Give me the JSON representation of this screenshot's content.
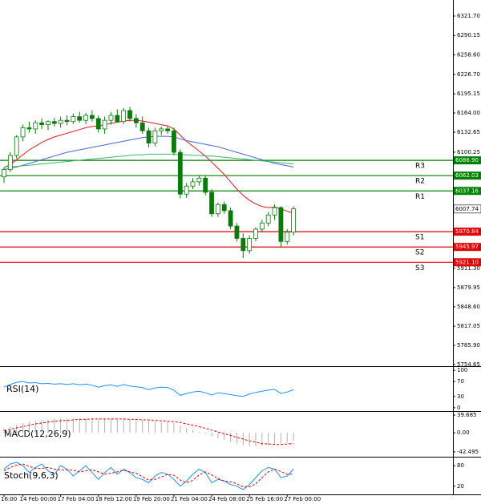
{
  "chart_data": [
    {
      "type": "candlestick",
      "categories": [
        "16:00",
        null,
        null,
        "14 Feb 00:00",
        null,
        null,
        null,
        null,
        null,
        "17 Feb 04:00",
        null,
        null,
        null,
        null,
        null,
        "18 Feb 12:00",
        null,
        null,
        null,
        null,
        null,
        "19 Feb 20:00",
        null,
        null,
        null,
        null,
        null,
        "21 Feb 04:00",
        null,
        null,
        null,
        null,
        null,
        "24 Feb 08:00",
        null,
        null,
        null,
        null,
        null,
        "25 Feb 16:00",
        null,
        null,
        null,
        null,
        null,
        "27 Feb 00:00",
        null
      ],
      "open": [
        6060,
        6072,
        6095,
        6125,
        6140,
        6138,
        6148,
        6145,
        6150,
        6147,
        6152,
        6150,
        6158,
        6152,
        6160,
        6155,
        6138,
        6152,
        6160,
        6150,
        6168,
        6155,
        6148,
        6135,
        6115,
        6135,
        6138,
        6135,
        6100,
        6032,
        6045,
        6052,
        6058,
        6035,
        6000,
        6015,
        6005,
        5980,
        5960,
        5940,
        5960,
        5975,
        5985,
        5998,
        6010,
        5955,
        5970
      ],
      "high": [
        6075,
        6100,
        6128,
        6145,
        6150,
        6152,
        6155,
        6152,
        6156,
        6158,
        6160,
        6163,
        6166,
        6164,
        6168,
        6160,
        6158,
        6165,
        6170,
        6172,
        6174,
        6162,
        6158,
        6140,
        6140,
        6142,
        6142,
        6140,
        6105,
        6050,
        6058,
        6062,
        6062,
        6040,
        6018,
        6020,
        6010,
        5985,
        5968,
        5965,
        5978,
        5990,
        6003,
        6015,
        6012,
        5975,
        6012
      ],
      "low": [
        6050,
        6068,
        6090,
        6118,
        6132,
        6130,
        6138,
        6136,
        6142,
        6140,
        6144,
        6146,
        6148,
        6146,
        6150,
        6132,
        6130,
        6145,
        6148,
        6146,
        6150,
        6140,
        6130,
        6108,
        6110,
        6128,
        6130,
        6095,
        6025,
        6026,
        6040,
        6046,
        6030,
        5995,
        5995,
        6000,
        5975,
        5955,
        5928,
        5935,
        5955,
        5970,
        5980,
        5990,
        5945,
        5950,
        5965
      ],
      "close": [
        6072,
        6095,
        6125,
        6140,
        6138,
        6148,
        6145,
        6150,
        6147,
        6152,
        6150,
        6158,
        6152,
        6160,
        6155,
        6138,
        6152,
        6160,
        6150,
        6168,
        6155,
        6148,
        6135,
        6115,
        6135,
        6138,
        6135,
        6100,
        6032,
        6045,
        6052,
        6058,
        6035,
        6000,
        6015,
        6005,
        5980,
        5960,
        5940,
        5960,
        5975,
        5985,
        5998,
        6010,
        5955,
        5970,
        6008
      ],
      "up_color": "#ffffff",
      "down_color": "#0a7a0a",
      "wick_color": "#0a7a0a",
      "series": [
        {
          "color": "#e8161b",
          "values": [
            6075,
            6080,
            6088,
            6096,
            6104,
            6110,
            6116,
            6121,
            6125,
            6128,
            6131,
            6134,
            6137,
            6140,
            6142,
            6143,
            6145,
            6147,
            6149,
            6151,
            6152,
            6152,
            6151,
            6149,
            6147,
            6145,
            6143,
            6138,
            6128,
            6118,
            6110,
            6102,
            6094,
            6084,
            6074,
            6064,
            6052,
            6040,
            6030,
            6022,
            6016,
            6012,
            6010,
            6011,
            6008,
            6004,
            6001
          ]
        },
        {
          "color": "#4a66d8",
          "values": [
            6072,
            6074,
            6076,
            6079,
            6082,
            6085,
            6088,
            6091,
            6094,
            6097,
            6100,
            6102,
            6104,
            6106,
            6108,
            6110,
            6112,
            6114,
            6116,
            6118,
            6120,
            6122,
            6124,
            6125,
            6126,
            6126,
            6126,
            6125,
            6122,
            6119,
            6117,
            6115,
            6113,
            6111,
            6109,
            6106,
            6103,
            6100,
            6097,
            6094,
            6091,
            6088,
            6085,
            6082,
            6080,
            6078,
            6076
          ]
        },
        {
          "color": "#3cb371",
          "values": [
            6076,
            6077,
            6077,
            6078,
            6079,
            6080,
            6081,
            6082,
            6083,
            6084,
            6085,
            6086,
            6087,
            6088,
            6089,
            6090,
            6091,
            6092,
            6093,
            6094,
            6095,
            6096,
            6096,
            6097,
            6097,
            6097,
            6097,
            6097,
            6096,
            6096,
            6095,
            6095,
            6094,
            6094,
            6093,
            6092,
            6091,
            6090,
            6089,
            6088,
            6087,
            6086,
            6085,
            6084,
            6083,
            6082,
            6081
          ]
        }
      ],
      "levels": [
        {
          "name": "R3",
          "value": 6086.9,
          "value_label": "6086.90",
          "color": "#008000"
        },
        {
          "name": "R2",
          "value": 6062.03,
          "color": "#008000"
        },
        {
          "name": "R1",
          "value": 6037.16,
          "color": "#008000"
        },
        {
          "name": "S1",
          "value": 5970.84,
          "color": "#e00000"
        },
        {
          "name": "S2",
          "value": 5945.97,
          "color": "#e00000"
        },
        {
          "name": "S3",
          "value": 5921.1,
          "value_label": "5921.10",
          "color": "#e00000"
        }
      ],
      "last_price": 6007.74,
      "ylim": [
        5752,
        6347.8
      ],
      "yticks": [
        {
          "value": 6321.7,
          "label": "6321.70"
        },
        6290.15,
        {
          "value": 6258.6,
          "label": "6258.60"
        },
        {
          "value": 6226.7,
          "label": "6226.70"
        },
        6195.15,
        {
          "value": 6164,
          "label": "6164.00"
        },
        6132.65,
        6100.25,
        {
          "value": 5911.3,
          "label": "5911.30"
        },
        5879.95,
        {
          "value": 5848.6,
          "label": "5848.60"
        },
        5817.05,
        {
          "value": 5785.9,
          "label": "5785.90"
        },
        5754.65
      ]
    },
    {
      "type": "line",
      "title": "RSI(14)",
      "ylim": [
        -8.9,
        106.7
      ],
      "yticks": [
        100,
        70,
        30,
        0
      ],
      "series": [
        {
          "color": "#1e90ff",
          "values": [
            55,
            62,
            68,
            70,
            66,
            67,
            64,
            65,
            63,
            64,
            62,
            64,
            61,
            63,
            60,
            55,
            59,
            61,
            57,
            62,
            58,
            56,
            54,
            48,
            53,
            55,
            54,
            47,
            33,
            38,
            42,
            44,
            40,
            34,
            40,
            38,
            35,
            32,
            30,
            37,
            41,
            44,
            47,
            49,
            38,
            42,
            48
          ]
        }
      ]
    },
    {
      "type": "macd",
      "title": "MACD(12,26,9)",
      "ylim": [
        -53.4,
        46.9
      ],
      "yticks": [
        39.685,
        {
          "value": 0,
          "label": "0.00"
        },
        -42.495
      ],
      "series": [
        {
          "color": "#b0b0b0",
          "values": [
            10,
            14,
            18,
            22,
            25,
            27,
            29,
            30,
            31,
            32,
            32,
            32,
            32,
            32,
            32,
            31,
            31,
            31,
            31,
            30,
            30,
            29,
            28,
            27,
            26,
            25,
            24,
            22,
            16,
            10,
            6,
            2,
            -2,
            -8,
            -12,
            -16,
            -20,
            -24,
            -28,
            -30,
            -30,
            -29,
            -27,
            -25,
            -24,
            -22,
            -18
          ]
        },
        {
          "color": "#e00000",
          "values": [
            5,
            8,
            11,
            14,
            17,
            20,
            22,
            24,
            26,
            27,
            28,
            29,
            30,
            30,
            31,
            31,
            31,
            31,
            31,
            31,
            30,
            30,
            29,
            29,
            28,
            27,
            26,
            25,
            23,
            20,
            17,
            14,
            10,
            6,
            2,
            -2,
            -6,
            -10,
            -14,
            -18,
            -21,
            -24,
            -25,
            -26,
            -26,
            -25,
            -24
          ]
        }
      ]
    },
    {
      "type": "line",
      "title": "Stoch(9,6,3)",
      "ylim": [
        -4,
        104
      ],
      "yticks": [
        80,
        20
      ],
      "series": [
        {
          "color": "#1e90ff",
          "values": [
            70,
            85,
            90,
            80,
            60,
            75,
            85,
            65,
            55,
            80,
            70,
            50,
            65,
            80,
            60,
            40,
            60,
            75,
            55,
            70,
            60,
            45,
            40,
            30,
            50,
            60,
            55,
            40,
            20,
            35,
            55,
            70,
            60,
            30,
            40,
            35,
            25,
            20,
            10,
            25,
            45,
            65,
            75,
            70,
            45,
            50,
            70
          ]
        },
        {
          "color": "#e00000",
          "dashed": true,
          "values": [
            65,
            75,
            82,
            85,
            78,
            72,
            72,
            75,
            70,
            67,
            68,
            67,
            62,
            65,
            68,
            62,
            55,
            58,
            62,
            67,
            62,
            58,
            48,
            38,
            40,
            47,
            55,
            52,
            38,
            30,
            37,
            53,
            62,
            53,
            43,
            35,
            33,
            27,
            18,
            18,
            27,
            45,
            62,
            70,
            63,
            55,
            55
          ]
        }
      ]
    }
  ]
}
